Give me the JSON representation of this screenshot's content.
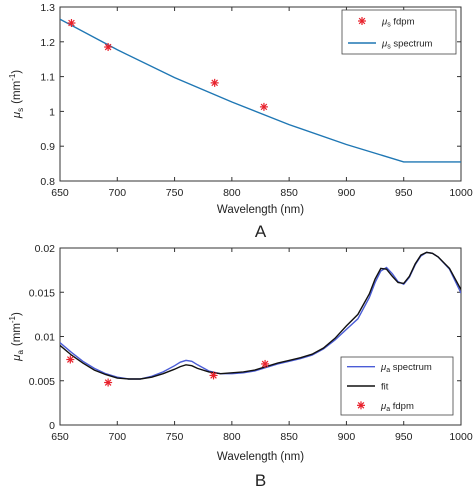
{
  "chart_data": [
    {
      "type": "line",
      "panel_label": "A",
      "xlabel": "Wavelength (nm)",
      "ylabel_main": "μ",
      "ylabel_sub": "s",
      "ylabel_unit": "(mm",
      "ylabel_exp": "-1",
      "ylabel_close": ")",
      "xlim": [
        650,
        1000
      ],
      "ylim": [
        0.8,
        1.3
      ],
      "xticks": [
        "650",
        "700",
        "750",
        "800",
        "850",
        "900",
        "950",
        "1000"
      ],
      "yticks": [
        "0.8",
        "0.9",
        "1",
        "1.1",
        "1.2",
        "1.3"
      ],
      "grid": false,
      "legend_position": "top-right",
      "series": [
        {
          "kind": "scatter",
          "legend_main": "μ",
          "legend_sub": "s",
          "legend_rest": " fdpm",
          "color": "#e8212c",
          "x": [
            660,
            692,
            785,
            828
          ],
          "y": [
            1.254,
            1.185,
            1.082,
            1.013
          ]
        },
        {
          "kind": "line",
          "legend_main": "μ",
          "legend_sub": "s",
          "legend_rest": " spectrum",
          "color": "#1f77b4",
          "x": [
            650,
            700,
            750,
            800,
            850,
            900,
            950,
            1000
          ],
          "y": [
            1.265,
            1.177,
            1.097,
            1.027,
            0.962,
            0.905,
            0.855,
            0.855
          ]
        }
      ]
    },
    {
      "type": "line",
      "panel_label": "B",
      "xlabel": "Wavelength (nm)",
      "ylabel_main": "μ",
      "ylabel_sub": "a",
      "ylabel_unit": "(mm",
      "ylabel_exp": "-1",
      "ylabel_close": ")",
      "xlim": [
        650,
        1000
      ],
      "ylim": [
        0,
        0.02
      ],
      "xticks": [
        "650",
        "700",
        "750",
        "800",
        "850",
        "900",
        "950",
        "1000"
      ],
      "yticks": [
        "0",
        "0.005",
        "0.01",
        "0.015",
        "0.02"
      ],
      "grid": false,
      "legend_position": "bottom-right",
      "series": [
        {
          "kind": "line",
          "legend_main": "μ",
          "legend_sub": "a",
          "legend_rest": " spectrum",
          "color": "#4a5cd6",
          "x": [
            650,
            660,
            670,
            680,
            690,
            700,
            710,
            720,
            730,
            740,
            750,
            755,
            760,
            765,
            770,
            780,
            790,
            800,
            810,
            820,
            830,
            840,
            850,
            860,
            870,
            880,
            890,
            900,
            910,
            920,
            925,
            930,
            935,
            940,
            945,
            950,
            955,
            960,
            965,
            970,
            975,
            980,
            990,
            1000
          ],
          "y": [
            0.0093,
            0.0082,
            0.0072,
            0.0064,
            0.0058,
            0.0054,
            0.0052,
            0.0052,
            0.0055,
            0.006,
            0.0067,
            0.0071,
            0.0073,
            0.0072,
            0.0068,
            0.0061,
            0.0058,
            0.0058,
            0.0059,
            0.0061,
            0.0065,
            0.0069,
            0.0072,
            0.0075,
            0.0079,
            0.0086,
            0.0096,
            0.0108,
            0.012,
            0.0144,
            0.0161,
            0.0174,
            0.0178,
            0.0171,
            0.0162,
            0.0159,
            0.0167,
            0.0181,
            0.0191,
            0.0195,
            0.0194,
            0.019,
            0.0176,
            0.0149
          ]
        },
        {
          "kind": "line",
          "legend_main": "",
          "legend_sub": "",
          "legend_rest": "fit",
          "color": "#111111",
          "x": [
            650,
            660,
            670,
            680,
            690,
            700,
            710,
            720,
            730,
            740,
            750,
            755,
            760,
            765,
            770,
            780,
            790,
            800,
            810,
            820,
            830,
            840,
            850,
            860,
            870,
            880,
            890,
            900,
            910,
            920,
            925,
            930,
            935,
            940,
            945,
            950,
            955,
            960,
            965,
            970,
            975,
            980,
            990,
            1000
          ],
          "y": [
            0.009,
            0.0079,
            0.007,
            0.0062,
            0.0057,
            0.0053,
            0.0052,
            0.0052,
            0.0054,
            0.0058,
            0.0063,
            0.0066,
            0.0068,
            0.0067,
            0.0064,
            0.006,
            0.0058,
            0.0059,
            0.006,
            0.0062,
            0.0066,
            0.007,
            0.0073,
            0.0076,
            0.008,
            0.0087,
            0.0098,
            0.0112,
            0.0125,
            0.0148,
            0.0165,
            0.0177,
            0.0176,
            0.0168,
            0.0161,
            0.016,
            0.0168,
            0.0182,
            0.0192,
            0.0195,
            0.0194,
            0.019,
            0.0177,
            0.0153
          ]
        },
        {
          "kind": "scatter",
          "legend_main": "μ",
          "legend_sub": "a",
          "legend_rest": " fdpm",
          "color": "#e8212c",
          "x": [
            659,
            692,
            784,
            829
          ],
          "y": [
            0.0074,
            0.0048,
            0.0056,
            0.0069
          ]
        }
      ]
    }
  ]
}
